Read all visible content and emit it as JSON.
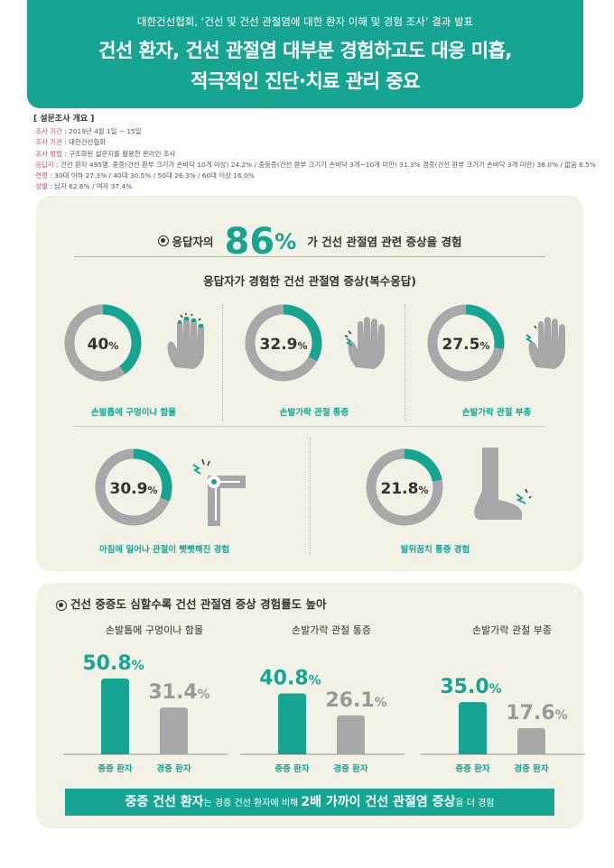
{
  "header": {
    "subtitle": "대한건선협회, ‘건선 및 건선 관절염에 대한 환자 이해 및 경험 조사’ 결과 발표",
    "title_line1": "건선 환자, 건선 관절염 대부분 경험하고도 대응 미흡,",
    "title_line2": "적극적인 진단·치료 관리 중요"
  },
  "survey": {
    "title": "[ 설문조사 개요 ]",
    "rows": [
      {
        "key": "조사 기간",
        "value": "2019년 4월 1일 ~ 15일"
      },
      {
        "key": "조사 기관",
        "value": "대한건선협회"
      },
      {
        "key": "조사 방법",
        "value": "구조화된 설문지를 활용한 온라인 조사"
      },
      {
        "key": "응답자",
        "value": "건선 환자 495명. 중증(건선 환부 크기가 손바닥 10개 이상) 24.2% / 중등증(건선 환부 크기가 손바닥 3개~10개 미만) 31.3% 경증(건선 환부 크기가 손바닥 3개 미만) 38.0% / 없음 6.5%"
      },
      {
        "key": "연령",
        "value": "30대 이하 27.3% / 40대 30.5% / 50대 26.3% / 60대 이상 16.0%"
      },
      {
        "key": "성별",
        "value": "남자 62.6% / 여자 37.4%"
      }
    ]
  },
  "respondents": {
    "prefix": "응답자의",
    "percent": "86",
    "pct_sign": "%",
    "suffix": "가 건선 관절염 관련 증상을 경험"
  },
  "symptoms_title": "응답자가 경험한 건선 관절염 증상(복수응답)",
  "colors": {
    "accent": "#17a593",
    "grey": "#a8a8a8",
    "panel": "#f3f2e6"
  },
  "chart_data": [
    {
      "type": "pie",
      "title": "응답자가 경험한 건선 관절염 증상(복수응답)",
      "slices": [
        {
          "label": "손발톱에 구멍이나 함몰",
          "value": 40,
          "display": "40",
          "icon": "hand-nails-icon"
        },
        {
          "label": "손발가락 관절 통증",
          "value": 32.9,
          "display": "32.9",
          "icon": "hand-pain-icon"
        },
        {
          "label": "손발가락 관절 부종",
          "value": 27.5,
          "display": "27.5",
          "icon": "hand-swelling-icon"
        },
        {
          "label": "아침에 일어나 관절이 뻣뻣해진 경험",
          "value": 30.9,
          "display": "30.9",
          "icon": "stiff-joint-icon"
        },
        {
          "label": "발뒤꿈치 통증 경험",
          "value": 21.8,
          "display": "21.8",
          "icon": "heel-pain-icon"
        }
      ]
    },
    {
      "type": "bar",
      "title": "건선 중증도 심할수록 건선 관절염 증상 경험률도 높아",
      "categories": [
        "손발톱에 구멍이나 함몰",
        "손발가락 관절 통증",
        "손발가락 관절 부종"
      ],
      "series": [
        {
          "name": "중증 환자",
          "values": [
            50.8,
            40.8,
            35.0
          ],
          "display": [
            "50.8",
            "40.8",
            "35.0"
          ]
        },
        {
          "name": "경증 환자",
          "values": [
            31.4,
            26.1,
            17.6
          ],
          "display": [
            "31.4",
            "26.1",
            "17.6"
          ]
        }
      ]
    }
  ],
  "banner": {
    "part1": "중증 건선 환자",
    "part2": "는 경증 건선 환자에 비해 ",
    "part3": "2배 가까이 건선 관절염 증상",
    "part4": "을 더 경험"
  }
}
